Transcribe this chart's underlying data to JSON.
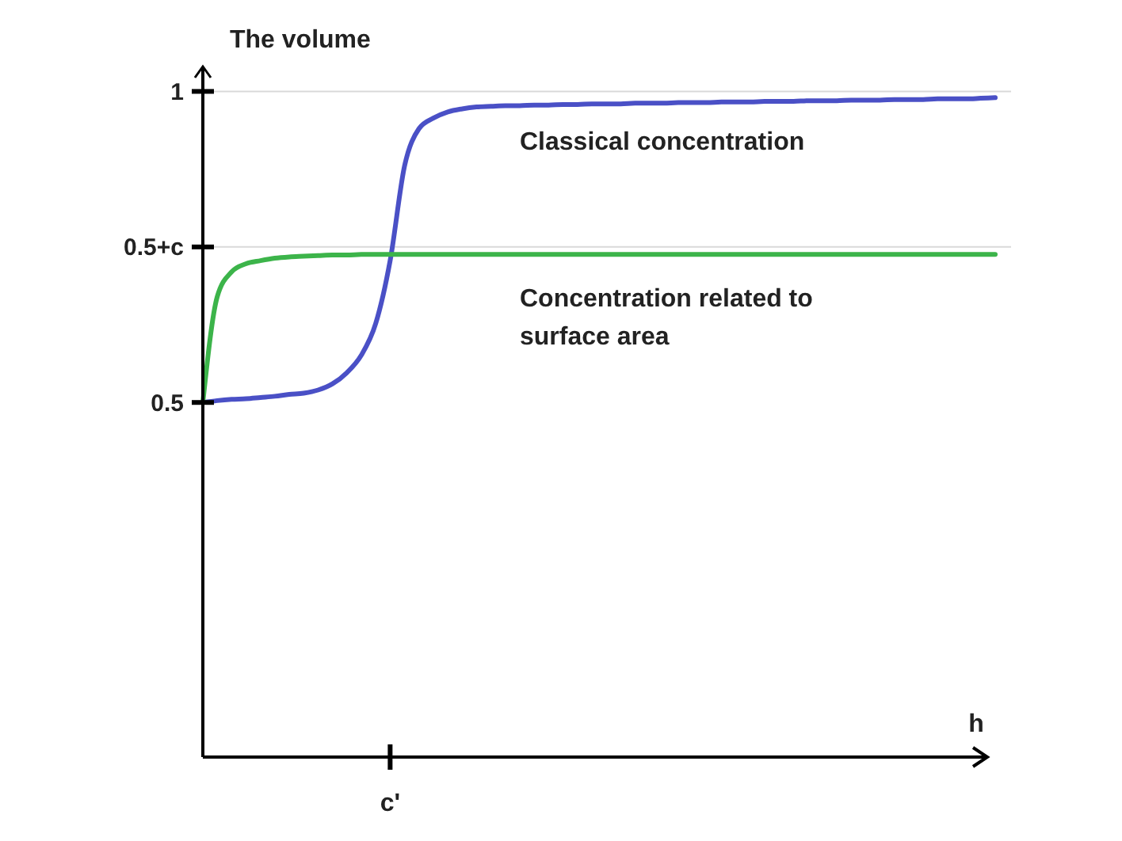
{
  "chart_data": {
    "type": "line",
    "ylabel": "The volume",
    "xlabel": "h",
    "categories": [
      null,
      null,
      null,
      null,
      null,
      null,
      null,
      null,
      null,
      null,
      null,
      null,
      null,
      "c'",
      null,
      null,
      null,
      null,
      null,
      null,
      null,
      null,
      null,
      null,
      null,
      null,
      null,
      null,
      null,
      null,
      null,
      null,
      null,
      null,
      null,
      null,
      null,
      null,
      null,
      null,
      null,
      null,
      null,
      null,
      null,
      null,
      null,
      null,
      null,
      null,
      null,
      null,
      null,
      null,
      null,
      null
    ],
    "series": [
      {
        "name": "Classical concentration",
        "color": "#4a50c6",
        "values": [
          0.5,
          0.503,
          0.505,
          0.506,
          0.508,
          0.51,
          0.513,
          0.515,
          0.52,
          0.53,
          0.548,
          0.576,
          0.627,
          0.728,
          0.88,
          0.94,
          0.957,
          0.967,
          0.972,
          0.975,
          0.976,
          0.977,
          0.977,
          0.978,
          0.978,
          0.979,
          0.979,
          0.98,
          0.98,
          0.98,
          0.981,
          0.981,
          0.981,
          0.982,
          0.982,
          0.982,
          0.983,
          0.983,
          0.983,
          0.984,
          0.984,
          0.984,
          0.985,
          0.985,
          0.985,
          0.986,
          0.986,
          0.986,
          0.987,
          0.987,
          0.987,
          0.988,
          0.988,
          0.988,
          0.989,
          0.99
        ]
      },
      {
        "name": "Concentration related to surface area",
        "color": "#3cb44a",
        "values": [
          0.5,
          0.67,
          0.71,
          0.723,
          0.728,
          0.732,
          0.734,
          0.735,
          0.736,
          0.737,
          0.737,
          0.738,
          0.738,
          0.738,
          0.738,
          0.738,
          0.738,
          0.738,
          0.738,
          0.738,
          0.738,
          0.738,
          0.738,
          0.738,
          0.738,
          0.738,
          0.738,
          0.738,
          0.738,
          0.738,
          0.738,
          0.738,
          0.738,
          0.738,
          0.738,
          0.738,
          0.738,
          0.738,
          0.738,
          0.738,
          0.738,
          0.738,
          0.738,
          0.738,
          0.738,
          0.738,
          0.738,
          0.738,
          0.738,
          0.738,
          0.738,
          0.738,
          0.738,
          0.738,
          0.738,
          0.738
        ]
      }
    ],
    "ylim": [
      -0.07,
      1.04
    ],
    "yticks": [
      0.5,
      {
        "value": 0.75,
        "label": "0.5+c"
      },
      1
    ],
    "ref_lines": [
      {
        "axis": "y",
        "value": 1,
        "color": "#d9d9d9"
      },
      {
        "axis": "y",
        "value": 0.75,
        "color": "#d9d9d9"
      }
    ],
    "marker": "none",
    "line_style": "solid"
  }
}
